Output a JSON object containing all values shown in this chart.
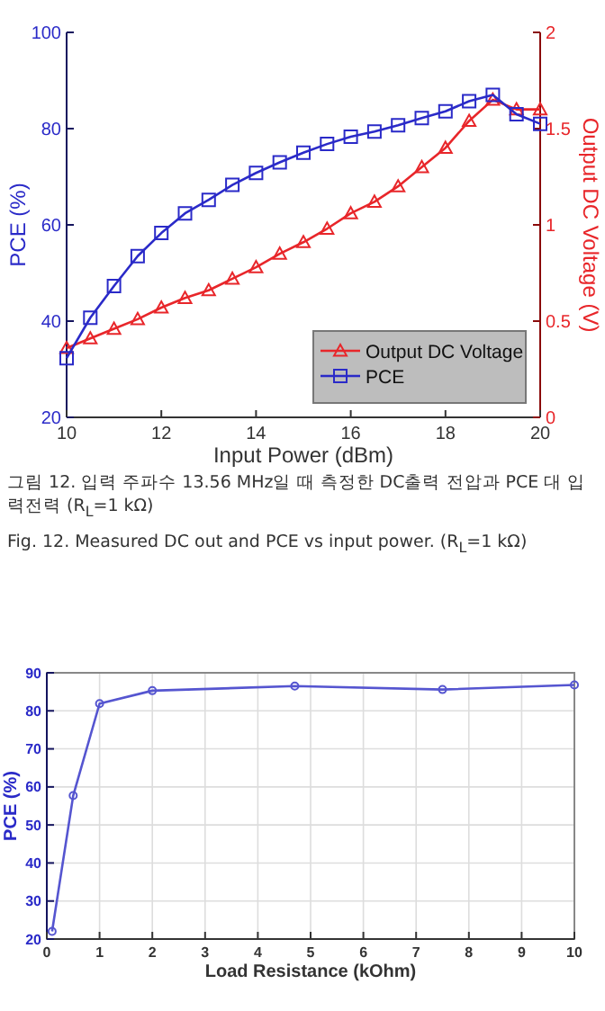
{
  "chart_data": [
    {
      "type": "line",
      "xlabel": "Input Power (dBm)",
      "ylabel": "PCE (%)",
      "y2label": "Output DC Voltage (V)",
      "x": [
        10,
        10.5,
        11,
        11.5,
        12,
        12.5,
        13,
        13.5,
        14,
        14.5,
        15,
        15.5,
        16,
        16.5,
        17,
        17.5,
        18,
        18.5,
        19,
        19.5,
        20
      ],
      "series": [
        {
          "name": "Output DC Voltage",
          "color": "#e8262a",
          "marker": "triangle",
          "axis": "y2",
          "values": [
            0.36,
            0.41,
            0.46,
            0.51,
            0.57,
            0.62,
            0.66,
            0.72,
            0.78,
            0.85,
            0.91,
            0.98,
            1.06,
            1.12,
            1.2,
            1.3,
            1.4,
            1.54,
            1.65,
            1.6,
            1.6
          ]
        },
        {
          "name": "PCE",
          "color": "#2a2ac8",
          "marker": "square",
          "values": [
            32.3,
            40.7,
            47.3,
            53.5,
            58.3,
            62.4,
            65.2,
            68.3,
            70.8,
            73,
            75,
            76.8,
            78.3,
            79.4,
            80.7,
            82.2,
            83.6,
            85.7,
            87,
            83,
            81
          ]
        }
      ],
      "xlim": [
        10,
        20
      ],
      "xticks": [
        10,
        12,
        14,
        16,
        18,
        20
      ],
      "ylim": [
        20,
        100
      ],
      "yticks": [
        20,
        40,
        60,
        80,
        100
      ],
      "y2lim": [
        0,
        2
      ],
      "y2ticks": [
        0,
        0.5,
        1,
        1.5,
        2
      ],
      "grid": false,
      "legend": "bottom right",
      "annotations": [
        "그림 12. 입력 주파수 13.56 MHz일 때 측정한 DC출력 전압과 PCE 대 입력전력 (R$_{L}$=1 kΩ)",
        "Fig. 12. Measured DC out and PCE vs input power. (R$_{L}$=1 kΩ)"
      ]
    },
    {
      "type": "line",
      "xlabel": "Load Resistance (kOhm)",
      "ylabel": "PCE (%)",
      "x": [
        0.1,
        0.5,
        1,
        2,
        4.7,
        7.5,
        10
      ],
      "series": [
        {
          "color": "#5555d0",
          "values": [
            22,
            57.7,
            81.9,
            85.3,
            86.5,
            85.6,
            86.8
          ]
        }
      ],
      "xlim": [
        0,
        10
      ],
      "xticks": [
        0,
        1,
        2,
        3,
        4,
        5,
        6,
        7,
        8,
        9,
        10
      ],
      "ylim": [
        20,
        90
      ],
      "yticks": [
        20,
        30,
        40,
        50,
        60,
        70,
        80,
        90
      ],
      "grid": true,
      "marker": "circle"
    }
  ]
}
